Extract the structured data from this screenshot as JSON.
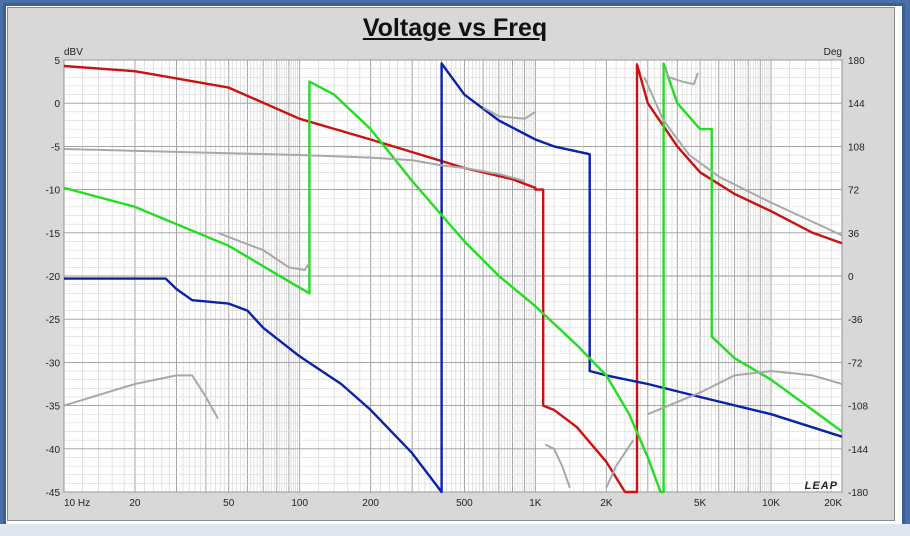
{
  "title": "Voltage vs Freq",
  "chart_data": {
    "type": "line",
    "title": "Voltage vs Freq",
    "xscale": "log",
    "xlim": [
      10,
      20000
    ],
    "ylim": [
      -45,
      5
    ],
    "y2lim": [
      -180,
      180
    ],
    "ylabel": "dBV",
    "y2label": "Deg",
    "xticks": [
      {
        "v": 10,
        "label": "10  Hz"
      },
      {
        "v": 20,
        "label": "20"
      },
      {
        "v": 50,
        "label": "50"
      },
      {
        "v": 100,
        "label": "100"
      },
      {
        "v": 200,
        "label": "200"
      },
      {
        "v": 500,
        "label": "500"
      },
      {
        "v": 1000,
        "label": "1K"
      },
      {
        "v": 2000,
        "label": "2K"
      },
      {
        "v": 5000,
        "label": "5K"
      },
      {
        "v": 10000,
        "label": "10K"
      },
      {
        "v": 20000,
        "label": "20K"
      }
    ],
    "yticks": [
      5,
      0,
      -5,
      -10,
      -15,
      -20,
      -25,
      -30,
      -35,
      -40,
      -45
    ],
    "y2ticks": [
      180,
      144,
      108,
      72,
      36,
      0,
      -36,
      -72,
      -108,
      -144,
      -180
    ],
    "grid": true,
    "logo": "LEAP",
    "colors": {
      "red": "#cc1111",
      "blue": "#0a22aa",
      "green": "#22dd22",
      "gray": "#a8a8a8"
    },
    "series": [
      {
        "color": "red",
        "points": [
          [
            10,
            4.3
          ],
          [
            20,
            3.7
          ],
          [
            50,
            1.8
          ],
          [
            100,
            -1.8
          ],
          [
            200,
            -4.2
          ],
          [
            500,
            -7.5
          ],
          [
            800,
            -8.8
          ],
          [
            1000,
            -9.8
          ],
          [
            1000,
            -10
          ],
          [
            1080,
            -10
          ],
          [
            1080,
            -35
          ],
          [
            1200,
            -35.5
          ],
          [
            1500,
            -37.5
          ],
          [
            2000,
            -41.5
          ],
          [
            2400,
            -45
          ],
          [
            2700,
            -45
          ],
          [
            2700,
            4.5
          ],
          [
            3000,
            0
          ],
          [
            4000,
            -5
          ],
          [
            5000,
            -8
          ],
          [
            7000,
            -10.5
          ],
          [
            10000,
            -12.5
          ],
          [
            15000,
            -15
          ],
          [
            20000,
            -16.2
          ]
        ]
      },
      {
        "color": "blue",
        "points": [
          [
            10,
            -20.3
          ],
          [
            27,
            -20.3
          ],
          [
            30,
            -21.5
          ],
          [
            35,
            -22.8
          ],
          [
            50,
            -23.2
          ],
          [
            60,
            -24
          ],
          [
            70,
            -26
          ],
          [
            100,
            -29.3
          ],
          [
            150,
            -32.5
          ],
          [
            200,
            -35.5
          ],
          [
            300,
            -40.5
          ],
          [
            400,
            -45
          ],
          [
            400,
            4.6
          ],
          [
            500,
            1
          ],
          [
            700,
            -2
          ],
          [
            1000,
            -4.2
          ],
          [
            1200,
            -5
          ],
          [
            1700,
            -5.9
          ],
          [
            1700,
            -31
          ],
          [
            2000,
            -31.5
          ],
          [
            3000,
            -32.5
          ],
          [
            5000,
            -34
          ],
          [
            10000,
            -36
          ],
          [
            20000,
            -38.6
          ]
        ]
      },
      {
        "color": "green",
        "points": [
          [
            10,
            -9.8
          ],
          [
            20,
            -12
          ],
          [
            50,
            -16.5
          ],
          [
            80,
            -19.8
          ],
          [
            110,
            -22
          ],
          [
            110,
            2.5
          ],
          [
            140,
            1
          ],
          [
            200,
            -3
          ],
          [
            300,
            -9
          ],
          [
            500,
            -16
          ],
          [
            700,
            -20
          ],
          [
            1000,
            -23.5
          ],
          [
            1500,
            -28
          ],
          [
            2000,
            -31.5
          ],
          [
            2500,
            -36
          ],
          [
            3000,
            -41
          ],
          [
            3400,
            -45
          ],
          [
            3500,
            -45
          ],
          [
            3500,
            4.6
          ],
          [
            4000,
            0
          ],
          [
            5000,
            -3
          ],
          [
            5600,
            -3
          ],
          [
            5600,
            -27
          ],
          [
            7000,
            -29.5
          ],
          [
            10000,
            -32
          ],
          [
            20000,
            -38
          ]
        ]
      },
      {
        "color": "gray",
        "points": [
          [
            10,
            -5.3
          ],
          [
            50,
            -5.8
          ],
          [
            100,
            -6
          ],
          [
            200,
            -6.3
          ],
          [
            300,
            -6.6
          ],
          [
            400,
            -7.2
          ],
          [
            500,
            -7.5
          ],
          [
            700,
            -8.2
          ],
          [
            900,
            -9
          ]
        ]
      },
      {
        "color": "gray",
        "points": [
          [
            10,
            -35
          ],
          [
            20,
            -32.5
          ],
          [
            30,
            -31.5
          ],
          [
            35,
            -31.5
          ],
          [
            40,
            -34
          ],
          [
            45,
            -36.5
          ]
        ]
      },
      {
        "color": "gray",
        "points": [
          [
            45,
            -15
          ],
          [
            50,
            -15.5
          ],
          [
            70,
            -17
          ],
          [
            90,
            -19
          ],
          [
            105,
            -19.3
          ],
          [
            110,
            -18.5
          ]
        ]
      },
      {
        "color": "gray",
        "points": [
          [
            600,
            -0.5
          ],
          [
            700,
            -1.5
          ],
          [
            900,
            -1.8
          ],
          [
            1000,
            -1
          ]
        ]
      },
      {
        "color": "gray",
        "points": [
          [
            1100,
            -39.5
          ],
          [
            1200,
            -40
          ],
          [
            1300,
            -42
          ],
          [
            1400,
            -44.5
          ]
        ]
      },
      {
        "color": "gray",
        "points": [
          [
            2000,
            -44.5
          ],
          [
            2200,
            -42
          ],
          [
            2600,
            -39
          ]
        ]
      },
      {
        "color": "gray",
        "points": [
          [
            3000,
            -36
          ],
          [
            5000,
            -33.5
          ],
          [
            7000,
            -31.5
          ],
          [
            10000,
            -31
          ],
          [
            15000,
            -31.5
          ],
          [
            20000,
            -32.5
          ]
        ]
      },
      {
        "color": "gray",
        "points": [
          [
            3500,
            4
          ],
          [
            3700,
            3
          ],
          [
            4200,
            2.5
          ],
          [
            4700,
            2.2
          ],
          [
            4900,
            3.5
          ]
        ]
      },
      {
        "color": "gray",
        "points": [
          [
            2900,
            3
          ],
          [
            3500,
            -2
          ],
          [
            4500,
            -6
          ],
          [
            6000,
            -8.5
          ],
          [
            10000,
            -11.5
          ],
          [
            20000,
            -15.3
          ]
        ]
      }
    ]
  }
}
